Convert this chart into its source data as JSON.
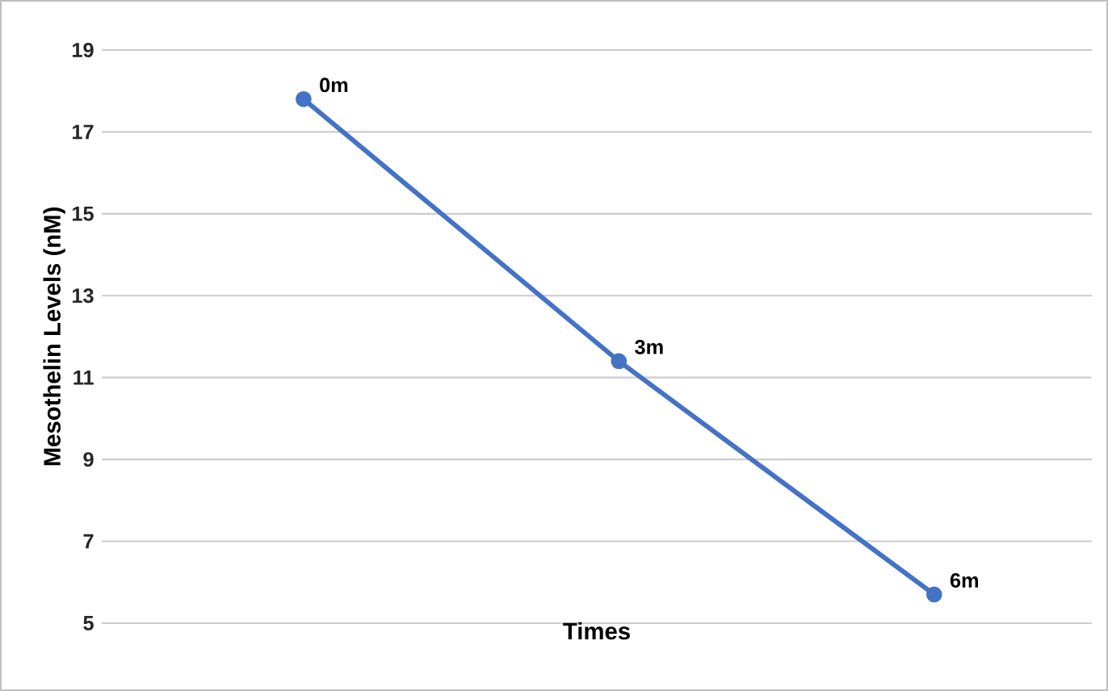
{
  "chart_data": {
    "type": "line",
    "xlabel": "Times",
    "ylabel": "Mesothelin Levels (nM)",
    "categories": [
      "0m",
      "3m",
      "6m"
    ],
    "values": [
      17.8,
      11.4,
      5.7
    ],
    "color": "#4472c4",
    "marker": "circle",
    "grid": "y",
    "tick_labels": "y",
    "ylim": [
      5,
      19
    ],
    "yticks": [
      5,
      7,
      9,
      11,
      13,
      15,
      17,
      19
    ]
  }
}
